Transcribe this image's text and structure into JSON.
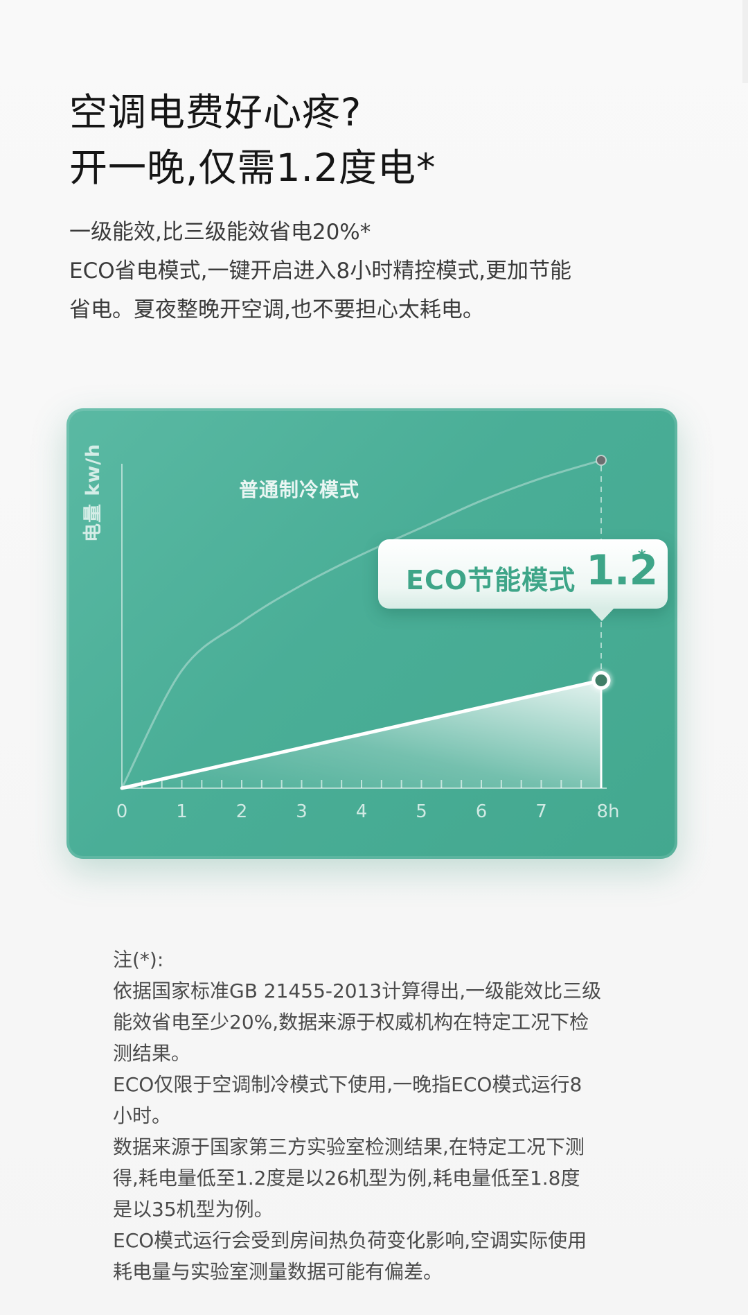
{
  "headline": {
    "line1": "空调电费好心疼?",
    "line2": "开一晚,仅需1.2度电*"
  },
  "intro": {
    "line1": "一级能效,比三级能效省电20%*",
    "line2": "ECO省电模式,一键开启进入8小时精控模式,更加节能",
    "line3": "省电。夏夜整晚开空调,也不要担心太耗电。"
  },
  "colors": {
    "card_bg": "#4aae97",
    "card_accent": "#3ea588",
    "badge_bg": "#ffffff",
    "text_dark": "#1c1c1c"
  },
  "chart_data": {
    "type": "line",
    "ylabel": "电量 kw/h",
    "xlabel": "",
    "x_ticks": [
      "0",
      "1",
      "2",
      "3",
      "4",
      "5",
      "6",
      "7",
      "8h"
    ],
    "xlim": [
      0,
      8
    ],
    "grid": false,
    "series": [
      {
        "name": "普通制冷模式",
        "curve": "concave",
        "points": [
          {
            "x": 0,
            "y": 0
          },
          {
            "x": 1,
            "y": 1.31
          },
          {
            "x": 2,
            "y": 1.85
          },
          {
            "x": 3,
            "y": 2.26
          },
          {
            "x": 4,
            "y": 2.6
          },
          {
            "x": 5,
            "y": 2.9
          },
          {
            "x": 6,
            "y": 3.2
          },
          {
            "x": 7,
            "y": 3.45
          },
          {
            "x": 8,
            "y": 3.65
          }
        ]
      },
      {
        "name": "ECO节能模式",
        "end_value": "1.2",
        "end_marker": "*",
        "points": [
          {
            "x": 0,
            "y": 0
          },
          {
            "x": 8,
            "y": 1.2
          }
        ]
      }
    ]
  },
  "notes": {
    "title": "注(*):",
    "lines": [
      "依据国家标准GB 21455-2013计算得出,一级能效比三级",
      "能效省电至少20%,数据来源于权威机构在特定工况下检",
      "测结果。",
      "ECO仅限于空调制冷模式下使用,一晚指ECO模式运行8",
      "小时。",
      "数据来源于国家第三方实验室检测结果,在特定工况下测",
      "得,耗电量低至1.2度是以26机型为例,耗电量低至1.8度",
      "是以35机型为例。",
      "ECO模式运行会受到房间热负荷变化影响,空调实际使用",
      "耗电量与实验室测量数据可能有偏差。"
    ]
  }
}
